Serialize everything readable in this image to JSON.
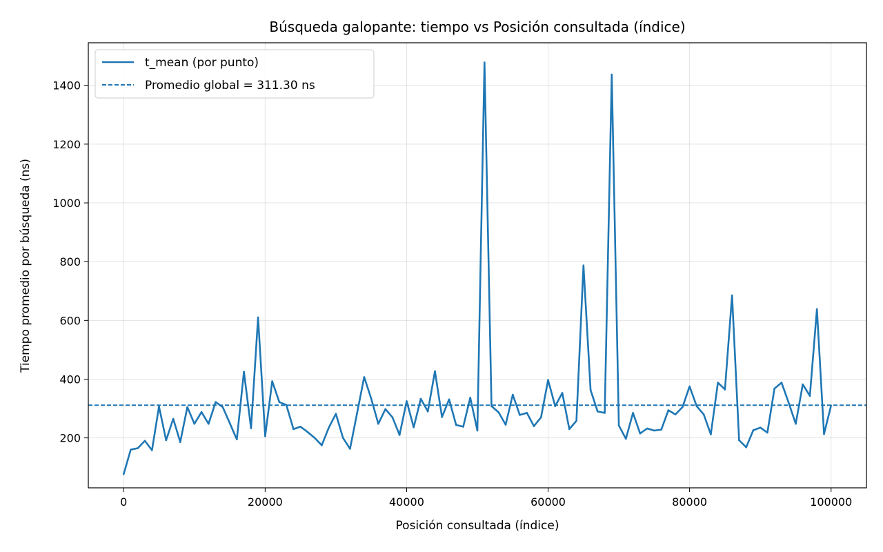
{
  "chart_data": {
    "type": "line",
    "title": "Búsqueda galopante: tiempo vs Posición consultada (índice)",
    "xlabel": "Posición consultada (índice)",
    "ylabel": "Tiempo promedio por búsqueda (ns)",
    "xlim": [
      -5000,
      105000
    ],
    "ylim": [
      30,
      1545
    ],
    "xticks": [
      0,
      20000,
      40000,
      60000,
      80000,
      100000
    ],
    "yticks": [
      200,
      400,
      600,
      800,
      1000,
      1200,
      1400
    ],
    "grid": true,
    "legend_position": "top-left",
    "series": [
      {
        "name": "t_mean (por punto)",
        "style": "solid",
        "color": "#1f77b4",
        "x": [
          0,
          1000,
          2000,
          3000,
          4000,
          5000,
          6000,
          7000,
          8000,
          9000,
          10000,
          11000,
          12000,
          13000,
          14000,
          15000,
          16000,
          17000,
          18000,
          19000,
          20000,
          21000,
          22000,
          23000,
          24000,
          25000,
          26000,
          27000,
          28000,
          29000,
          30000,
          31000,
          32000,
          33000,
          34000,
          35000,
          36000,
          37000,
          38000,
          39000,
          40000,
          41000,
          42000,
          43000,
          44000,
          45000,
          46000,
          47000,
          48000,
          49000,
          50000,
          51000,
          52000,
          53000,
          54000,
          55000,
          56000,
          57000,
          58000,
          59000,
          60000,
          61000,
          62000,
          63000,
          64000,
          65000,
          66000,
          67000,
          68000,
          69000,
          70000,
          71000,
          72000,
          73000,
          74000,
          75000,
          76000,
          77000,
          78000,
          79000,
          80000,
          81000,
          82000,
          83000,
          84000,
          85000,
          86000,
          87000,
          88000,
          89000,
          90000,
          91000,
          92000,
          93000,
          94000,
          95000,
          96000,
          97000,
          98000,
          99000,
          100000
        ],
        "y": [
          77,
          160,
          165,
          190,
          158,
          307,
          192,
          265,
          186,
          305,
          248,
          288,
          248,
          322,
          305,
          250,
          195,
          425,
          233,
          610,
          206,
          393,
          322,
          312,
          230,
          238,
          220,
          200,
          175,
          235,
          282,
          200,
          163,
          285,
          407,
          333,
          248,
          298,
          270,
          210,
          325,
          236,
          333,
          290,
          427,
          271,
          331,
          244,
          238,
          337,
          225,
          1478,
          308,
          287,
          245,
          347,
          278,
          285,
          240,
          270,
          397,
          308,
          353,
          230,
          258,
          787,
          363,
          290,
          285,
          1437,
          242,
          197,
          285,
          215,
          232,
          225,
          228,
          294,
          280,
          305,
          375,
          308,
          280,
          212,
          388,
          365,
          685,
          192,
          168,
          226,
          235,
          218,
          368,
          388,
          320,
          248,
          382,
          343,
          638,
          213,
          310
        ]
      },
      {
        "name": "Promedio global = 311.30 ns",
        "style": "dashed",
        "color": "#1f77b4",
        "y_constant": 311.3
      }
    ]
  }
}
